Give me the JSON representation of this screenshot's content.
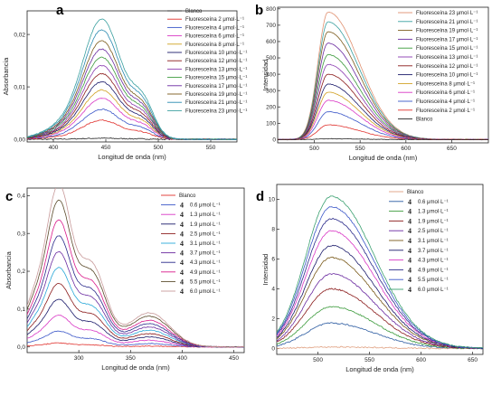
{
  "panels": [
    {
      "letter": "a",
      "type": "line",
      "xlabel": "Longitud de onda (nm)",
      "ylabel": "Absorbancia",
      "xlim": [
        375,
        575
      ],
      "ylim": [
        -0.0005,
        0.0245
      ],
      "xticks": [
        400,
        450,
        500,
        550
      ],
      "yticks": [
        0.0,
        0.01,
        0.02
      ],
      "ytick_labels": [
        "0,00",
        "0,01",
        "0,02"
      ],
      "legend": {
        "position": "top-right",
        "inside": true
      },
      "series": [
        {
          "name": "Blanco",
          "color": "#222222"
        },
        {
          "name": "Fluoresceína 2 μmol·L⁻¹",
          "color": "#e0302c"
        },
        {
          "name": "Fluoresceína 4 μmol·L⁻¹",
          "color": "#3a56c8"
        },
        {
          "name": "Fluoresceína 6 μmol·L⁻¹",
          "color": "#d938c5"
        },
        {
          "name": "Fluoresceína 8 μmol·L⁻¹",
          "color": "#d0a020"
        },
        {
          "name": "Fluoresceína 10 μmol·L⁻¹",
          "color": "#1a1a6a"
        },
        {
          "name": "Fluoresceína 12 μmol·L⁻¹",
          "color": "#8a1a1a"
        },
        {
          "name": "Fluoresceína 13 μmol·L⁻¹",
          "color": "#8a3ab0"
        },
        {
          "name": "Fluoresceína 15 μmol·L⁻¹",
          "color": "#3a9a3a"
        },
        {
          "name": "Fluoresceína 17 μmol·L⁻¹",
          "color": "#6a2aa0"
        },
        {
          "name": "Fluoresceína 19 μmol·L⁻¹",
          "color": "#7a5a1a"
        },
        {
          "name": "Fluoresceína 21 μmol·L⁻¹",
          "color": "#2a8ab0"
        },
        {
          "name": "Fluoresceína 23 μmol·L⁻¹",
          "color": "#3aa0a0"
        }
      ],
      "peak_x": 447,
      "shoulder_x": 485,
      "peak_values": [
        0.0002,
        0.0035,
        0.0055,
        0.0075,
        0.009,
        0.0105,
        0.012,
        0.0135,
        0.015,
        0.0165,
        0.018,
        0.02,
        0.022
      ]
    },
    {
      "letter": "b",
      "type": "line",
      "xlabel": "Longitud de onda (nm)",
      "ylabel": "Intensidad",
      "xlim": [
        460,
        690
      ],
      "ylim": [
        -20,
        810
      ],
      "xticks": [
        500,
        550,
        600,
        650
      ],
      "yticks": [
        0,
        100,
        200,
        300,
        400,
        500,
        600,
        700,
        800
      ],
      "legend": {
        "position": "top-right",
        "inside": true
      },
      "series": [
        {
          "name": "Fluoresceína 23 μmol·L⁻¹",
          "color": "#e09070"
        },
        {
          "name": "Fluoresceína 21 μmol·L⁻¹",
          "color": "#3aa0a0"
        },
        {
          "name": "Fluoresceína 19 μmol·L⁻¹",
          "color": "#7a5a1a"
        },
        {
          "name": "Fluoresceína 17 μmol·L⁻¹",
          "color": "#6a2aa0"
        },
        {
          "name": "Fluoresceína 15 μmol·L⁻¹",
          "color": "#3a9a3a"
        },
        {
          "name": "Fluoresceína 13 μmol·L⁻¹",
          "color": "#8a3ab0"
        },
        {
          "name": "Fluoresceína 12 μmol·L⁻¹",
          "color": "#8a1a1a"
        },
        {
          "name": "Fluoresceína 10 μmol·L⁻¹",
          "color": "#1a1a6a"
        },
        {
          "name": "Fluoresceína 8 μmol·L⁻¹",
          "color": "#d0a020"
        },
        {
          "name": "Fluoresceína 6 μmol·L⁻¹",
          "color": "#d938c5"
        },
        {
          "name": "Fluoresceína 4 μmol·L⁻¹",
          "color": "#3a56c8"
        },
        {
          "name": "Fluoresceína 2 μmol·L⁻¹",
          "color": "#e0302c"
        },
        {
          "name": "Blanco",
          "color": "#222222"
        }
      ],
      "peak_x": 515,
      "peak_values": [
        780,
        720,
        660,
        590,
        520,
        460,
        400,
        340,
        290,
        240,
        170,
        90,
        5
      ]
    },
    {
      "letter": "c",
      "type": "line",
      "xlabel": "Longitud de onda (nm)",
      "ylabel": "Absorbancia",
      "xlim": [
        250,
        460
      ],
      "ylim": [
        -0.015,
        0.42
      ],
      "xticks": [
        300,
        350,
        400,
        450
      ],
      "yticks": [
        0.0,
        0.1,
        0.2,
        0.3,
        0.4
      ],
      "ytick_labels": [
        "0,0",
        "0,1",
        "0,2",
        "0,3",
        "0,4"
      ],
      "legend": {
        "position": "top-right",
        "inside": true
      },
      "series": [
        {
          "name": "Blanco",
          "color": "#e0302c",
          "legend_mark": ""
        },
        {
          "name": "0.6 μmol·L⁻¹",
          "color": "#3a56c8",
          "legend_mark": "4"
        },
        {
          "name": "1.3 μmol·L⁻¹",
          "color": "#d938c5",
          "legend_mark": "4"
        },
        {
          "name": "1.9 μmol·L⁻¹",
          "color": "#1a1a6a",
          "legend_mark": "4"
        },
        {
          "name": "2.5 μmol·L⁻¹",
          "color": "#8a1a1a",
          "legend_mark": "4"
        },
        {
          "name": "3.1 μmol·L⁻¹",
          "color": "#2aa8d8",
          "legend_mark": "4"
        },
        {
          "name": "3.7 μmol·L⁻¹",
          "color": "#6a2aa0",
          "legend_mark": "4"
        },
        {
          "name": "4.3 μmol·L⁻¹",
          "color": "#2a2a8a",
          "legend_mark": "4"
        },
        {
          "name": "4.9 μmol·L⁻¹",
          "color": "#d91a8a",
          "legend_mark": "4"
        },
        {
          "name": "5.5 μmol·L⁻¹",
          "color": "#5a4a2a",
          "legend_mark": "4"
        },
        {
          "name": "6.0 μmol·L⁻¹",
          "color": "#c89a9a",
          "legend_mark": "4"
        }
      ],
      "peak_x": 280,
      "shoulder_x": 312,
      "band2_x": 367,
      "peak_values": [
        0.01,
        0.04,
        0.08,
        0.12,
        0.16,
        0.2,
        0.24,
        0.28,
        0.32,
        0.37,
        0.41
      ]
    },
    {
      "letter": "d",
      "type": "line",
      "xlabel": "Longitud de onda (nm)",
      "ylabel": "Intensidad",
      "xlim": [
        460,
        660
      ],
      "ylim": [
        -0.4,
        11
      ],
      "xticks": [
        500,
        550,
        600,
        650
      ],
      "yticks": [
        0,
        2,
        4,
        6,
        8,
        10
      ],
      "legend": {
        "position": "top-right",
        "inside": true
      },
      "series": [
        {
          "name": "Blanco",
          "color": "#e0a080",
          "legend_mark": ""
        },
        {
          "name": "0.6 μmol·L⁻¹",
          "color": "#2a5aa0",
          "legend_mark": "4"
        },
        {
          "name": "1.3 μmol·L⁻¹",
          "color": "#3a9a3a",
          "legend_mark": "4"
        },
        {
          "name": "1.9 μmol·L⁻¹",
          "color": "#8a1a1a",
          "legend_mark": "4"
        },
        {
          "name": "2.5 μmol·L⁻¹",
          "color": "#6a2aa0",
          "legend_mark": "4"
        },
        {
          "name": "3.1 μmol·L⁻¹",
          "color": "#7a5a1a",
          "legend_mark": "4"
        },
        {
          "name": "3.7 μmol·L⁻¹",
          "color": "#1a1a6a",
          "legend_mark": "4"
        },
        {
          "name": "4.3 μmol·L⁻¹",
          "color": "#d938c5",
          "legend_mark": "4"
        },
        {
          "name": "4.9 μmol·L⁻¹",
          "color": "#2a2a8a",
          "legend_mark": "4"
        },
        {
          "name": "5.5 μmol·L⁻¹",
          "color": "#3a56c8",
          "legend_mark": "4"
        },
        {
          "name": "6.0 μmol·L⁻¹",
          "color": "#3aa070",
          "legend_mark": "4"
        }
      ],
      "peak_x": 513,
      "peak_values": [
        0.1,
        1.7,
        2.8,
        4.0,
        5.0,
        6.1,
        6.9,
        7.9,
        8.7,
        9.5,
        10.2
      ]
    }
  ],
  "chart_data": [
    {
      "type": "line",
      "title": "",
      "xlabel": "Longitud de onda (nm)",
      "ylabel": "Absorbancia",
      "xlim": [
        375,
        575
      ],
      "ylim": [
        0,
        0.024
      ],
      "series_peak_at_447nm": [
        0.0002,
        0.0035,
        0.0055,
        0.0075,
        0.009,
        0.0105,
        0.012,
        0.0135,
        0.015,
        0.0165,
        0.018,
        0.02,
        0.022
      ]
    },
    {
      "type": "line",
      "title": "",
      "xlabel": "Longitud de onda (nm)",
      "ylabel": "Intensidad",
      "xlim": [
        460,
        690
      ],
      "ylim": [
        0,
        800
      ],
      "series_peak_at_515nm": [
        780,
        720,
        660,
        590,
        520,
        460,
        400,
        340,
        290,
        240,
        170,
        90,
        5
      ]
    },
    {
      "type": "line",
      "title": "",
      "xlabel": "Longitud de onda (nm)",
      "ylabel": "Absorbancia",
      "xlim": [
        250,
        460
      ],
      "ylim": [
        0,
        0.42
      ],
      "series_peak_at_280nm": [
        0.01,
        0.04,
        0.08,
        0.12,
        0.16,
        0.2,
        0.24,
        0.28,
        0.32,
        0.37,
        0.41
      ]
    },
    {
      "type": "line",
      "title": "",
      "xlabel": "Longitud de onda (nm)",
      "ylabel": "Intensidad",
      "xlim": [
        460,
        660
      ],
      "ylim": [
        0,
        11
      ],
      "series_peak_at_513nm": [
        0.1,
        1.7,
        2.8,
        4.0,
        5.0,
        6.1,
        6.9,
        7.9,
        8.7,
        9.5,
        10.2
      ]
    }
  ]
}
